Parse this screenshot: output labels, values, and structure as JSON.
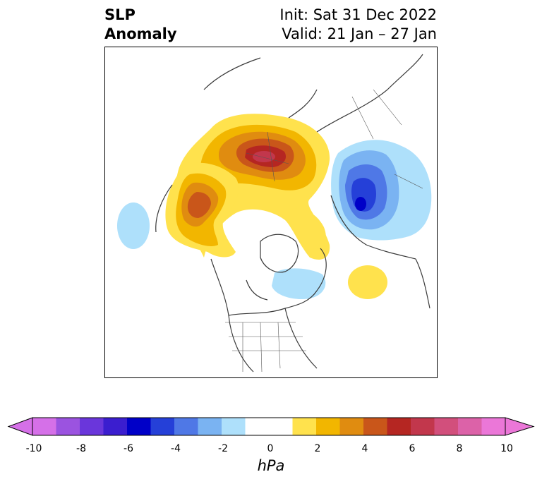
{
  "title": {
    "left_line1": "SLP",
    "left_line2": "Anomaly",
    "right_line1": "Init: Sat 31 Dec 2022",
    "right_line2": "Valid: 21 Jan – 27 Jan"
  },
  "map": {
    "features": [
      "positive-anomaly-arctic-scandinavia",
      "positive-anomaly-alaska",
      "negative-anomaly-north-atlantic",
      "negative-anomaly-north-pacific",
      "negative-anomaly-hudson-bay",
      "positive-anomaly-siberia"
    ]
  },
  "colorbar": {
    "unit": "hPa",
    "ticks": [
      "-10",
      "-8",
      "-6",
      "-4",
      "-2",
      "0",
      "2",
      "4",
      "6",
      "8",
      "10"
    ],
    "colors": [
      "#d570e8",
      "#9b53e0",
      "#6a36db",
      "#3b1ecf",
      "#0000c8",
      "#2540d8",
      "#4f78e6",
      "#7ab3f2",
      "#aee0fb",
      "#ffffff",
      "#ffffff",
      "#ffe24d",
      "#f2b600",
      "#e08c10",
      "#c9561a",
      "#b52622",
      "#c2374c",
      "#d24f7c",
      "#dc62a8",
      "#eb77d8"
    ]
  }
}
